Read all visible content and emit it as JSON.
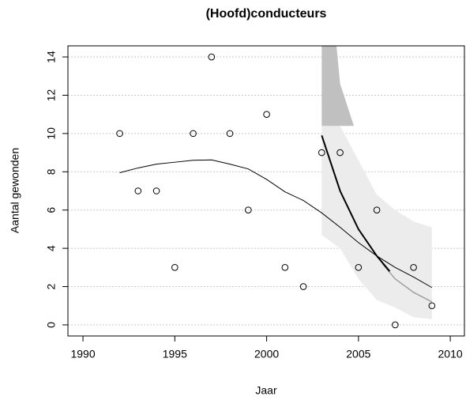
{
  "chart_data": {
    "type": "scatter",
    "title": "(Hoofd)conducteurs",
    "xlabel": "Jaar",
    "ylabel": "Aantal gewonden",
    "xlim": [
      1989.18,
      2010.77
    ],
    "ylim": [
      -0.58,
      14.58
    ],
    "xticks": [
      1990,
      1995,
      2000,
      2005,
      2010
    ],
    "yticks": [
      0,
      2,
      4,
      6,
      8,
      10,
      12,
      14
    ],
    "grid": true,
    "bands": [
      {
        "color": "#ececec",
        "x": [
          2003,
          2004,
          2005,
          2006,
          2007,
          2008,
          2009
        ],
        "upper": [
          10.4,
          10.4,
          8.6,
          6.8,
          6.0,
          5.4,
          5.1
        ],
        "lower": [
          4.7,
          4.0,
          2.4,
          1.3,
          0.9,
          0.4,
          0.3
        ]
      },
      {
        "color": "#c0c0c0",
        "x": [
          2003,
          2003.8,
          2004,
          2004.75
        ],
        "upper": [
          14.6,
          14.6,
          12.6,
          10.4
        ],
        "lower": [
          10.4,
          10.4,
          10.4,
          10.4
        ]
      }
    ],
    "lines": [
      {
        "color": "#000000",
        "width": 1,
        "x": [
          1992,
          1993,
          1994,
          1995,
          1996,
          1997,
          1998,
          1999,
          2000,
          2001,
          2002,
          2003,
          2004,
          2005,
          2006,
          2007,
          2008,
          2009
        ],
        "values": [
          7.95,
          8.2,
          8.4,
          8.5,
          8.6,
          8.62,
          8.4,
          8.15,
          7.6,
          6.95,
          6.5,
          5.85,
          5.1,
          4.3,
          3.6,
          3.0,
          2.5,
          1.95
        ]
      },
      {
        "color": "#a0a0a0",
        "width": 1.5,
        "x": [
          2006.3,
          2007,
          2008,
          2009
        ],
        "values": [
          3.2,
          2.4,
          1.7,
          1.2
        ]
      },
      {
        "color": "#000000",
        "width": 2,
        "x": [
          2003,
          2004,
          2005,
          2006,
          2006.7
        ],
        "values": [
          9.9,
          7.0,
          5.0,
          3.6,
          2.8
        ]
      }
    ],
    "points": {
      "x": [
        1992,
        1993,
        1994,
        1995,
        1996,
        1997,
        1998,
        1999,
        2000,
        2001,
        2002,
        2003,
        2004,
        2005,
        2006,
        2007,
        2008,
        2009
      ],
      "values": [
        10,
        7,
        7,
        3,
        10,
        14,
        10,
        6,
        11,
        3,
        2,
        9,
        9,
        3,
        6,
        0,
        3,
        1
      ]
    }
  }
}
